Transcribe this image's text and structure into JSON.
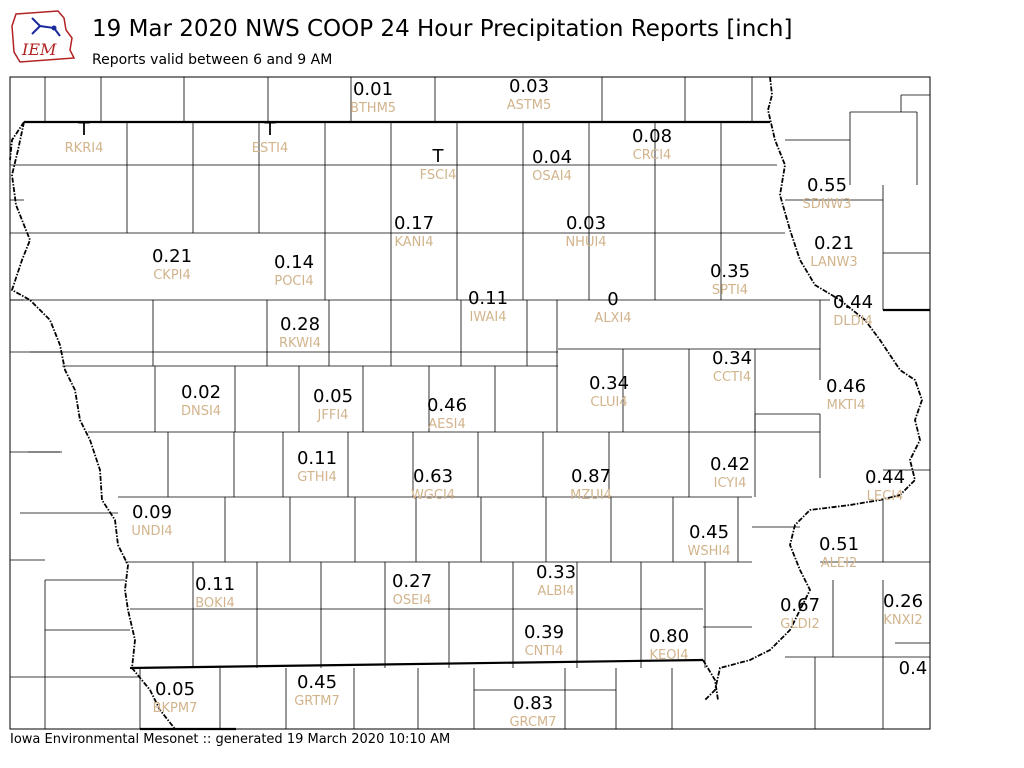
{
  "header": {
    "logo_text": "IEM",
    "title": "19 Mar 2020 NWS COOP 24 Hour Precipitation Reports [inch]",
    "subtitle": "Reports valid between 6 and 9 AM"
  },
  "footer": {
    "credit": "Iowa Environmental Mesonet :: generated 19 March 2020 10:10 AM"
  },
  "colors": {
    "value_text": "#000000",
    "station_text": "#d2b48c",
    "logo_red": "#b22222",
    "logo_blue": "#1a2a9c"
  },
  "stations": [
    {
      "id": "BTHM5",
      "value": "0.01"
    },
    {
      "id": "ASTM5",
      "value": "0.03"
    },
    {
      "id": "RKRI4",
      "value": "T"
    },
    {
      "id": "ESTI4",
      "value": "T"
    },
    {
      "id": "FSCI4",
      "value": "T"
    },
    {
      "id": "OSAI4",
      "value": "0.04"
    },
    {
      "id": "CRCI4",
      "value": "0.08"
    },
    {
      "id": "SDNW3",
      "value": "0.55"
    },
    {
      "id": "KANI4",
      "value": "0.17"
    },
    {
      "id": "NHUI4",
      "value": "0.03"
    },
    {
      "id": "LANW3",
      "value": "0.21"
    },
    {
      "id": "CKPI4",
      "value": "0.21"
    },
    {
      "id": "POCI4",
      "value": "0.14"
    },
    {
      "id": "SPTI4",
      "value": "0.35"
    },
    {
      "id": "IWAI4",
      "value": "0.11"
    },
    {
      "id": "ALXI4",
      "value": "0"
    },
    {
      "id": "DLDI4",
      "value": "0.44"
    },
    {
      "id": "RKWI4",
      "value": "0.28"
    },
    {
      "id": "CCTI4",
      "value": "0.34"
    },
    {
      "id": "CLUI4",
      "value": "0.34"
    },
    {
      "id": "DNSI4",
      "value": "0.02"
    },
    {
      "id": "JFFI4",
      "value": "0.05"
    },
    {
      "id": "AESI4",
      "value": "0.46"
    },
    {
      "id": "MKTI4",
      "value": "0.46"
    },
    {
      "id": "GTHI4",
      "value": "0.11"
    },
    {
      "id": "ICYI4",
      "value": "0.42"
    },
    {
      "id": "WGCI4",
      "value": "0.63"
    },
    {
      "id": "MZUI4",
      "value": "0.87"
    },
    {
      "id": "LECI4",
      "value": "0.44"
    },
    {
      "id": "UNDI4",
      "value": "0.09"
    },
    {
      "id": "WSHI4",
      "value": "0.45"
    },
    {
      "id": "ALEI2",
      "value": "0.51"
    },
    {
      "id": "BOKI4",
      "value": "0.11"
    },
    {
      "id": "OSEI4",
      "value": "0.27"
    },
    {
      "id": "ALBI4",
      "value": "0.33"
    },
    {
      "id": "GLDI2",
      "value": "0.67"
    },
    {
      "id": "KNXI2",
      "value": "0.26"
    },
    {
      "id": "CNTI4",
      "value": "0.39"
    },
    {
      "id": "KEOI4",
      "value": "0.80"
    },
    {
      "id": "BKPM7",
      "value": "0.05"
    },
    {
      "id": "GRTM7",
      "value": "0.45"
    },
    {
      "id": "GRCM7",
      "value": "0.83"
    },
    {
      "id": "",
      "value": "0.4"
    }
  ]
}
